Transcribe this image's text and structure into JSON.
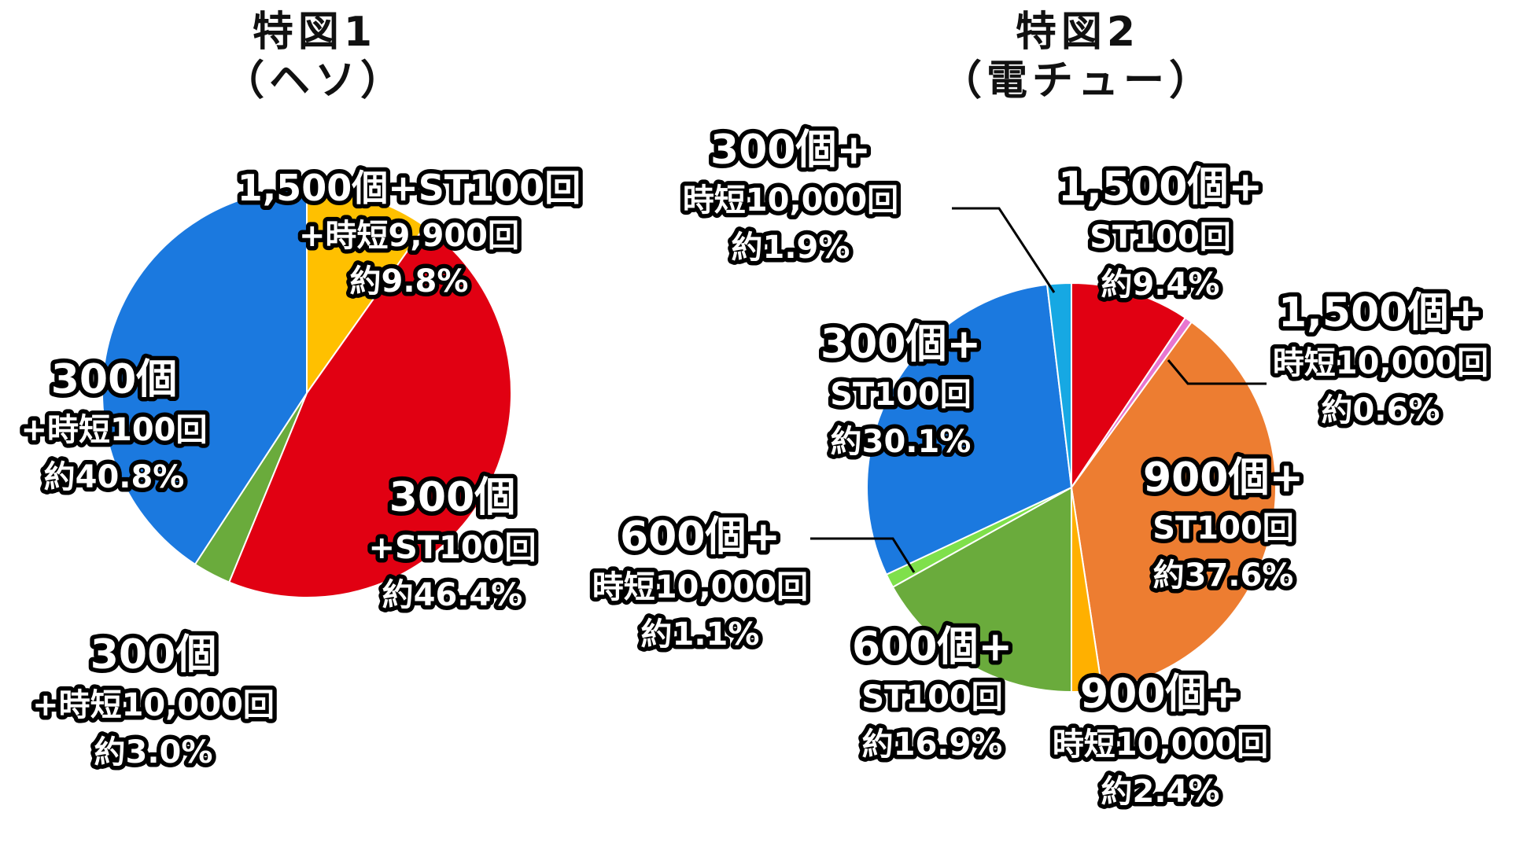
{
  "chart_data": [
    {
      "type": "pie",
      "title": "特図1",
      "subtitle": "（ヘソ）",
      "slices": [
        {
          "lines": [
            "1,500個+ST100回",
            "+時短9,900回"
          ],
          "pct": "約9.8%",
          "value": 9.8,
          "color": "#FFC000"
        },
        {
          "lines": [
            "300個",
            "+ST100回"
          ],
          "pct": "約46.4%",
          "value": 46.4,
          "color": "#E10012"
        },
        {
          "lines": [
            "300個",
            "+時短10,000回"
          ],
          "pct": "約3.0%",
          "value": 3.0,
          "color": "#6AAB3C"
        },
        {
          "lines": [
            "300個",
            "+時短100回"
          ],
          "pct": "約40.8%",
          "value": 40.8,
          "color": "#1B79DF"
        }
      ]
    },
    {
      "type": "pie",
      "title": "特図2",
      "subtitle": "（電チュー）",
      "slices": [
        {
          "lines": [
            "1,500個+",
            "ST100回"
          ],
          "pct": "約9.4%",
          "value": 9.4,
          "color": "#E10012"
        },
        {
          "lines": [
            "1,500個+",
            "時短10,000回"
          ],
          "pct": "約0.6%",
          "value": 0.6,
          "color": "#E876CF"
        },
        {
          "lines": [
            "900個+",
            "ST100回"
          ],
          "pct": "約37.6%",
          "value": 37.6,
          "color": "#ED7D31"
        },
        {
          "lines": [
            "900個+",
            "時短10,000回"
          ],
          "pct": "約2.4%",
          "value": 2.4,
          "color": "#FFB000"
        },
        {
          "lines": [
            "600個+",
            "ST100回"
          ],
          "pct": "約16.9%",
          "value": 16.9,
          "color": "#6AAB3C"
        },
        {
          "lines": [
            "600個+",
            "時短10,000回"
          ],
          "pct": "約1.1%",
          "value": 1.1,
          "color": "#7FE04B"
        },
        {
          "lines": [
            "300個+",
            "ST100回"
          ],
          "pct": "約30.1%",
          "value": 30.1,
          "color": "#1B79DF"
        },
        {
          "lines": [
            "300個+",
            "時短10,000回"
          ],
          "pct": "約1.9%",
          "value": 1.9,
          "color": "#16A8E3"
        }
      ]
    }
  ]
}
